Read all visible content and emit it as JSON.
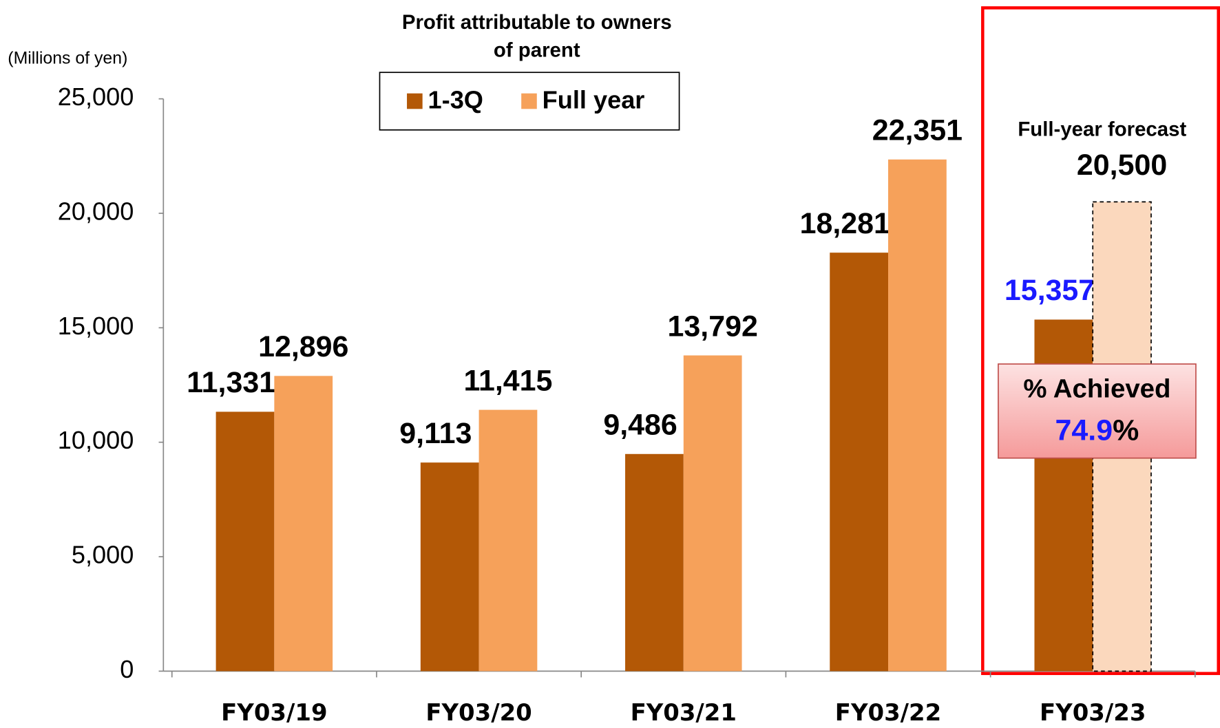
{
  "chart_data": {
    "type": "bar",
    "title": "Profit attributable to owners of parent",
    "y_axis_label": "(Millions of yen)",
    "categories": [
      "FY03/19",
      "FY03/20",
      "FY03/21",
      "FY03/22",
      "FY03/23"
    ],
    "series": [
      {
        "name": "1-3Q",
        "color": "#b35806",
        "values": [
          11331,
          9113,
          9486,
          18281,
          15357
        ],
        "value_labels": [
          "11,331",
          "9,113",
          "9,486",
          "18,281",
          "15,357"
        ],
        "value_label_colors": [
          "#000000",
          "#000000",
          "#000000",
          "#000000",
          "#1a1aff"
        ]
      },
      {
        "name": "Full year",
        "color": "#f6a15a",
        "values": [
          12896,
          11415,
          13792,
          22351,
          20500
        ],
        "value_labels": [
          "12,896",
          "11,415",
          "13,792",
          "22,351",
          "20,500"
        ],
        "point_colors": [
          "#f6a15a",
          "#f6a15a",
          "#f6a15a",
          "#f6a15a",
          "#fbd8bd"
        ],
        "dashed": [
          false,
          false,
          false,
          false,
          true
        ]
      }
    ],
    "ylim": [
      0,
      25000
    ],
    "yticks": [
      0,
      {
        "value": 5000,
        "label": "5,000"
      },
      {
        "value": 10000,
        "label": "10,000"
      },
      {
        "value": 15000,
        "label": "15,000"
      },
      {
        "value": 20000,
        "label": "20,000"
      },
      {
        "value": 25000,
        "label": "25,000"
      }
    ],
    "legend": "top",
    "annotations": {
      "forecast_label": "Full-year forecast",
      "achieved_label": "% Achieved",
      "achieved_value": 74.9,
      "achieved_unit": "%"
    }
  }
}
